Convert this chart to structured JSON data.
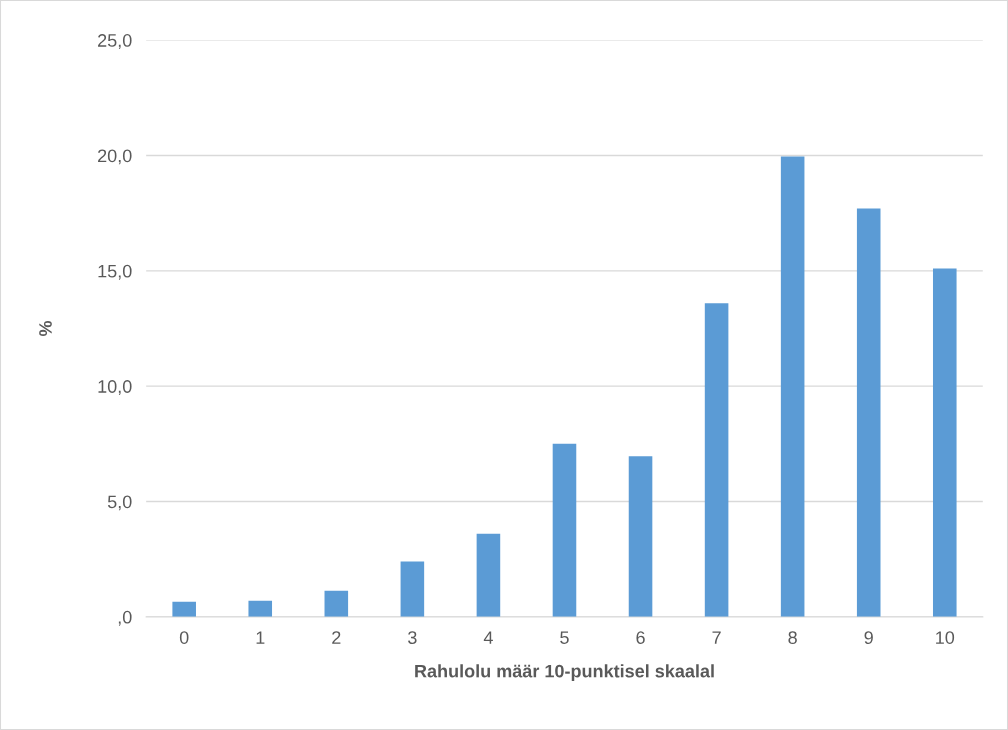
{
  "chart_data": {
    "type": "bar",
    "xlabel": "Rahulolu määr 10-punktisel skaalal",
    "ylabel": "%",
    "categories": [
      "0",
      "1",
      "2",
      "3",
      "4",
      "5",
      "6",
      "7",
      "8",
      "9",
      "10"
    ],
    "values": [
      0.65,
      0.7,
      1.13,
      2.4,
      3.6,
      7.5,
      6.96,
      13.6,
      19.96,
      17.7,
      15.1
    ],
    "color": "#5b9bd5",
    "ylim": [
      0,
      25
    ],
    "yticks": [
      {
        "value": 0,
        "label": ",0"
      },
      {
        "value": 5,
        "label": "5,0"
      },
      {
        "value": 10,
        "label": "10,0"
      },
      {
        "value": 15,
        "label": "15,0"
      },
      {
        "value": 20,
        "label": "20,0"
      },
      {
        "value": 25,
        "label": "25,0"
      }
    ],
    "grid": "y"
  }
}
